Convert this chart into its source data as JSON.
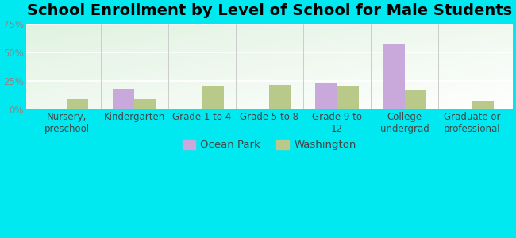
{
  "title": "School Enrollment by Level of School for Male Students",
  "categories": [
    "Nursery,\npreschool",
    "Kindergarten",
    "Grade 1 to 4",
    "Grade 5 to 8",
    "Grade 9 to\n12",
    "College\nundergrad",
    "Graduate or\nprofessional"
  ],
  "ocean_park": [
    0,
    18,
    0,
    0,
    24,
    58,
    0
  ],
  "washington": [
    9,
    9,
    21,
    22,
    21,
    17,
    8
  ],
  "ocean_park_color": "#c9a8dc",
  "washington_color": "#b8c98a",
  "ylim": [
    0,
    75
  ],
  "yticks": [
    0,
    25,
    50,
    75
  ],
  "ytick_labels": [
    "0%",
    "25%",
    "50%",
    "75%"
  ],
  "legend_ocean_park": "Ocean Park",
  "legend_washington": "Washington",
  "bg_outer": "#00e8f0",
  "title_fontsize": 14,
  "axis_label_fontsize": 8.5,
  "legend_fontsize": 9.5,
  "bar_width": 0.32,
  "ytick_color": "#888888",
  "xtick_color": "#444444"
}
